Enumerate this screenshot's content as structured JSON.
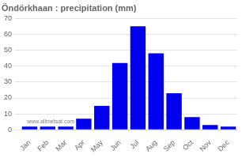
{
  "chart_data": {
    "type": "bar",
    "title": "Öndörkhaan : precipitation (mm)",
    "categories": [
      "Jan",
      "Feb",
      "Mar",
      "Apr",
      "May",
      "Jun",
      "Jul",
      "Aug",
      "Sep",
      "Oct",
      "Nov",
      "Dec"
    ],
    "values": [
      2,
      2,
      2,
      7,
      15,
      42,
      65,
      48,
      23,
      8,
      3,
      2
    ],
    "color": "#0000ee",
    "ylim": [
      0,
      70
    ],
    "yticks": [
      0,
      10,
      20,
      30,
      40,
      50,
      60,
      70
    ],
    "grid": true,
    "annotations": [
      "www.allmetsat.com"
    ]
  }
}
